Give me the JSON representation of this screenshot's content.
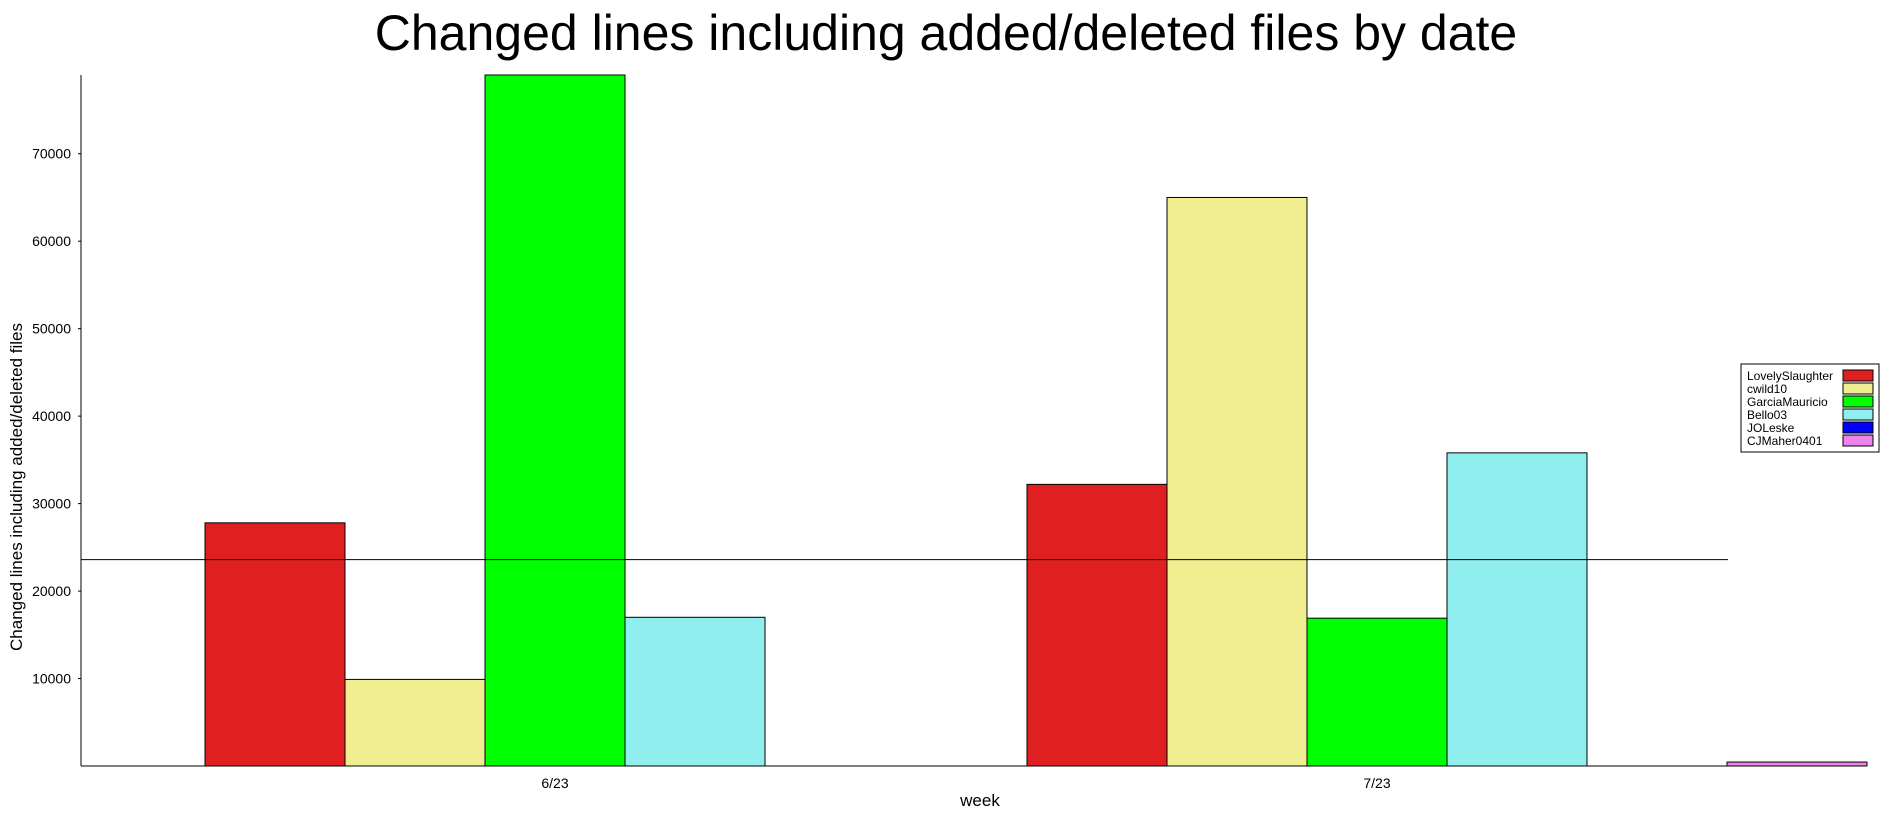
{
  "chart_data": {
    "type": "bar",
    "title": "Changed lines including added/deleted files by date",
    "xlabel": "week",
    "ylabel": "Changed lines including added/deleted files",
    "categories": [
      "6/23",
      "7/23"
    ],
    "yticks": [
      10000,
      20000,
      30000,
      40000,
      50000,
      60000,
      70000
    ],
    "ylim": [
      0,
      79000
    ],
    "reference_line": 23600,
    "legend_position": "right",
    "grid": false,
    "series": [
      {
        "name": "LovelySlaughter",
        "color": "#e02020",
        "values": [
          27800,
          32200
        ]
      },
      {
        "name": "cwild10",
        "color": "#f0ee90",
        "values": [
          9900,
          65000
        ]
      },
      {
        "name": "GarciaMauricio",
        "color": "#00ff00",
        "values": [
          79000,
          16900
        ]
      },
      {
        "name": "Bello03",
        "color": "#90eeee",
        "values": [
          17000,
          35800
        ]
      },
      {
        "name": "JOLeske",
        "color": "#0000ff",
        "values": [
          0,
          0
        ]
      },
      {
        "name": "CJMaher0401",
        "color": "#ee82ee",
        "values": [
          0,
          450
        ]
      }
    ]
  }
}
